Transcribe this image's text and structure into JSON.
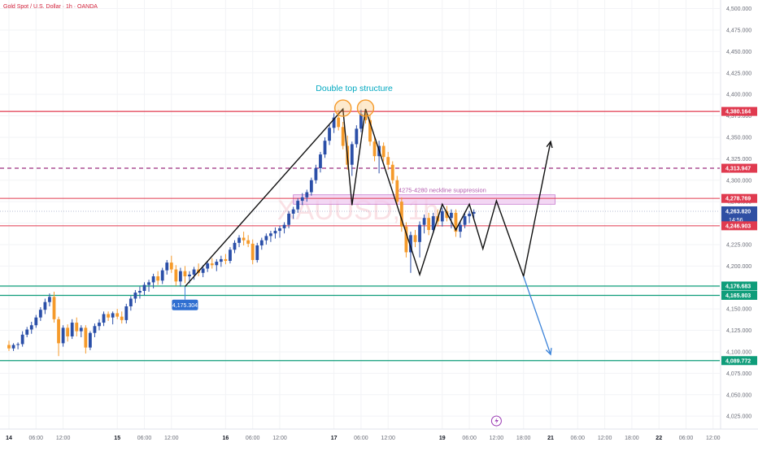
{
  "header": {
    "symbol_title": "Gold Spot / U.S. Dollar · 1h · OANDA"
  },
  "watermark": "XAUUSD, 1h",
  "colors": {
    "up": "#2b4fa8",
    "down": "#f59a2a",
    "resistance": "#e03a4f",
    "support": "#0f9d7a",
    "dashed_level": "#9c2d7e",
    "neckline_zone": "#f0c8ef",
    "annotation_text": "#00a8c0",
    "projection_down": "#3d84d9",
    "current_price": "#2f4fa3"
  },
  "chart_data": {
    "type": "candlestick",
    "timeframe": "1h",
    "y_axis": {
      "range": [
        4010,
        4510
      ],
      "ticks": [
        "4,500.000",
        "4,475.000",
        "4,450.000",
        "4,425.000",
        "4,400.000",
        "4,375.000",
        "4,350.000",
        "4,325.000",
        "4,300.000",
        "4,275.000",
        "4,250.000",
        "4,225.000",
        "4,200.000",
        "4,175.000",
        "4,150.000",
        "4,125.000",
        "4,100.000",
        "4,075.000",
        "4,050.000",
        "4,025.000"
      ],
      "tick_values": [
        4500,
        4475,
        4450,
        4425,
        4400,
        4375,
        4350,
        4325,
        4300,
        4275,
        4250,
        4225,
        4200,
        4175,
        4150,
        4125,
        4100,
        4075,
        4050,
        4025
      ]
    },
    "x_axis": {
      "ticks": [
        "14",
        "06:00",
        "12:00",
        "15",
        "06:00",
        "12:00",
        "16",
        "06:00",
        "12:00",
        "17",
        "06:00",
        "12:00",
        "19",
        "06:00",
        "12:00",
        "18:00",
        "21",
        "06:00",
        "12:00",
        "18:00",
        "22",
        "06:00",
        "12:00"
      ],
      "tick_hours": [
        0,
        6,
        12,
        24,
        30,
        36,
        48,
        54,
        60,
        72,
        78,
        84,
        96,
        102,
        108,
        114,
        120,
        126,
        132,
        138,
        144,
        150,
        156
      ],
      "bold_ticks": [
        "14",
        "15",
        "16",
        "17",
        "19",
        "21",
        "22"
      ]
    },
    "price_levels": [
      {
        "label": "4,380.164",
        "value": 4380.164,
        "kind": "resistance"
      },
      {
        "label": "4,313.947",
        "value": 4313.947,
        "kind": "dashed"
      },
      {
        "label": "4,278.769",
        "value": 4278.769,
        "kind": "resistance"
      },
      {
        "label": "4,263.820",
        "value": 4263.82,
        "kind": "current",
        "countdown": "14:56"
      },
      {
        "label": "4,246.903",
        "value": 4246.903,
        "kind": "resistance"
      },
      {
        "label": "4,176.683",
        "value": 4176.683,
        "kind": "support"
      },
      {
        "label": "4,165.803",
        "value": 4165.803,
        "kind": "support"
      },
      {
        "label": "4,089.772",
        "value": 4089.772,
        "kind": "support"
      }
    ],
    "zone": {
      "label": "4275-4280 neckline suppression",
      "from": 4275,
      "to": 4280,
      "start_hour": 63,
      "end_hour": 121
    },
    "annotations": {
      "double_top": "Double top structure",
      "low_label": "4,175.304"
    },
    "swing_path": [
      [
        39,
        4176
      ],
      [
        74,
        4383
      ],
      [
        76,
        4271
      ],
      [
        79,
        4383
      ],
      [
        91,
        4190
      ],
      [
        96,
        4272
      ],
      [
        99,
        4242
      ],
      [
        102,
        4272
      ],
      [
        105,
        4220
      ],
      [
        108,
        4276
      ],
      [
        114,
        4188
      ],
      [
        120,
        4345
      ]
    ],
    "projection_down": [
      [
        114,
        4188
      ],
      [
        120,
        4097
      ]
    ],
    "candles": [
      [
        0,
        4108,
        4113,
        4101,
        4104
      ],
      [
        1,
        4104,
        4110,
        4101,
        4108
      ],
      [
        2,
        4108,
        4111,
        4103,
        4109
      ],
      [
        3,
        4109,
        4124,
        4106,
        4120
      ],
      [
        4,
        4120,
        4129,
        4117,
        4126
      ],
      [
        5,
        4126,
        4135,
        4121,
        4131
      ],
      [
        6,
        4131,
        4143,
        4128,
        4140
      ],
      [
        7,
        4140,
        4152,
        4136,
        4149
      ],
      [
        8,
        4149,
        4162,
        4144,
        4158
      ],
      [
        9,
        4158,
        4168,
        4153,
        4164
      ],
      [
        10,
        4164,
        4170,
        4134,
        4138
      ],
      [
        11,
        4138,
        4141,
        4095,
        4110
      ],
      [
        12,
        4110,
        4131,
        4106,
        4128
      ],
      [
        13,
        4128,
        4132,
        4112,
        4118
      ],
      [
        14,
        4118,
        4138,
        4115,
        4134
      ],
      [
        15,
        4134,
        4140,
        4118,
        4124
      ],
      [
        16,
        4124,
        4131,
        4117,
        4128
      ],
      [
        17,
        4128,
        4131,
        4098,
        4105
      ],
      [
        18,
        4105,
        4124,
        4102,
        4122
      ],
      [
        19,
        4122,
        4133,
        4117,
        4130
      ],
      [
        20,
        4130,
        4138,
        4125,
        4134
      ],
      [
        21,
        4134,
        4147,
        4130,
        4144
      ],
      [
        22,
        4144,
        4147,
        4136,
        4140
      ],
      [
        23,
        4140,
        4147,
        4132,
        4145
      ],
      [
        24,
        4145,
        4150,
        4138,
        4141
      ],
      [
        25,
        4141,
        4147,
        4133,
        4137
      ],
      [
        26,
        4137,
        4156,
        4133,
        4153
      ],
      [
        27,
        4153,
        4165,
        4148,
        4162
      ],
      [
        28,
        4162,
        4172,
        4157,
        4169
      ],
      [
        29,
        4169,
        4176,
        4162,
        4171
      ],
      [
        30,
        4171,
        4181,
        4166,
        4178
      ],
      [
        31,
        4178,
        4184,
        4170,
        4181
      ],
      [
        32,
        4181,
        4191,
        4174,
        4188
      ],
      [
        33,
        4188,
        4194,
        4178,
        4183
      ],
      [
        34,
        4183,
        4198,
        4179,
        4195
      ],
      [
        35,
        4195,
        4207,
        4190,
        4204
      ],
      [
        36,
        4204,
        4212,
        4192,
        4196
      ],
      [
        37,
        4196,
        4201,
        4177,
        4182
      ],
      [
        38,
        4182,
        4198,
        4176,
        4194
      ],
      [
        39,
        4194,
        4200,
        4180,
        4188
      ],
      [
        40,
        4188,
        4194,
        4180,
        4190
      ],
      [
        41,
        4190,
        4199,
        4184,
        4196
      ],
      [
        42,
        4196,
        4203,
        4188,
        4192
      ],
      [
        43,
        4192,
        4201,
        4187,
        4197
      ],
      [
        44,
        4197,
        4206,
        4193,
        4203
      ],
      [
        45,
        4203,
        4209,
        4197,
        4201
      ],
      [
        46,
        4201,
        4208,
        4194,
        4205
      ],
      [
        47,
        4205,
        4212,
        4199,
        4208
      ],
      [
        48,
        4208,
        4214,
        4202,
        4206
      ],
      [
        49,
        4206,
        4222,
        4203,
        4219
      ],
      [
        50,
        4219,
        4230,
        4215,
        4227
      ],
      [
        51,
        4227,
        4236,
        4222,
        4233
      ],
      [
        52,
        4233,
        4240,
        4224,
        4230
      ],
      [
        53,
        4230,
        4236,
        4222,
        4226
      ],
      [
        54,
        4226,
        4231,
        4202,
        4207
      ],
      [
        55,
        4207,
        4227,
        4204,
        4224
      ],
      [
        56,
        4224,
        4233,
        4219,
        4230
      ],
      [
        57,
        4230,
        4238,
        4225,
        4235
      ],
      [
        58,
        4235,
        4241,
        4228,
        4238
      ],
      [
        59,
        4238,
        4245,
        4232,
        4241
      ],
      [
        60,
        4241,
        4247,
        4233,
        4244
      ],
      [
        61,
        4244,
        4251,
        4238,
        4248
      ],
      [
        62,
        4248,
        4264,
        4244,
        4261
      ],
      [
        63,
        4261,
        4269,
        4255,
        4266
      ],
      [
        64,
        4266,
        4279,
        4262,
        4276
      ],
      [
        65,
        4276,
        4285,
        4271,
        4280
      ],
      [
        66,
        4280,
        4289,
        4275,
        4286
      ],
      [
        67,
        4286,
        4303,
        4282,
        4300
      ],
      [
        68,
        4300,
        4318,
        4296,
        4314
      ],
      [
        69,
        4314,
        4333,
        4309,
        4330
      ],
      [
        70,
        4330,
        4350,
        4326,
        4346
      ],
      [
        71,
        4346,
        4365,
        4341,
        4361
      ],
      [
        72,
        4361,
        4378,
        4355,
        4373
      ],
      [
        73,
        4373,
        4382,
        4358,
        4362
      ],
      [
        74,
        4362,
        4368,
        4336,
        4340
      ],
      [
        75,
        4340,
        4352,
        4312,
        4318
      ],
      [
        76,
        4318,
        4345,
        4305,
        4342
      ],
      [
        77,
        4342,
        4364,
        4338,
        4360
      ],
      [
        78,
        4360,
        4382,
        4356,
        4377
      ],
      [
        79,
        4377,
        4383,
        4366,
        4370
      ],
      [
        80,
        4370,
        4376,
        4340,
        4345
      ],
      [
        81,
        4345,
        4350,
        4322,
        4328
      ],
      [
        82,
        4328,
        4346,
        4308,
        4340
      ],
      [
        83,
        4340,
        4344,
        4322,
        4327
      ],
      [
        84,
        4327,
        4333,
        4312,
        4318
      ],
      [
        85,
        4318,
        4322,
        4296,
        4300
      ],
      [
        86,
        4300,
        4305,
        4270,
        4275
      ],
      [
        87,
        4275,
        4280,
        4240,
        4246
      ],
      [
        88,
        4246,
        4251,
        4210,
        4216
      ],
      [
        89,
        4216,
        4240,
        4192,
        4236
      ],
      [
        90,
        4236,
        4242,
        4222,
        4228
      ],
      [
        91,
        4228,
        4252,
        4210,
        4248
      ],
      [
        92,
        4248,
        4260,
        4238,
        4256
      ],
      [
        93,
        4256,
        4262,
        4236,
        4242
      ],
      [
        94,
        4242,
        4262,
        4238,
        4258
      ],
      [
        95,
        4258,
        4266,
        4246,
        4252
      ],
      [
        96,
        4252,
        4268,
        4246,
        4264
      ],
      [
        97,
        4264,
        4270,
        4252,
        4256
      ],
      [
        98,
        4256,
        4266,
        4244,
        4262
      ],
      [
        99,
        4262,
        4266,
        4234,
        4240
      ],
      [
        100,
        4240,
        4252,
        4233,
        4248
      ],
      [
        101,
        4248,
        4262,
        4244,
        4258
      ],
      [
        102,
        4258,
        4264,
        4250,
        4261
      ],
      [
        103,
        4261,
        4266,
        4255,
        4263
      ]
    ]
  }
}
